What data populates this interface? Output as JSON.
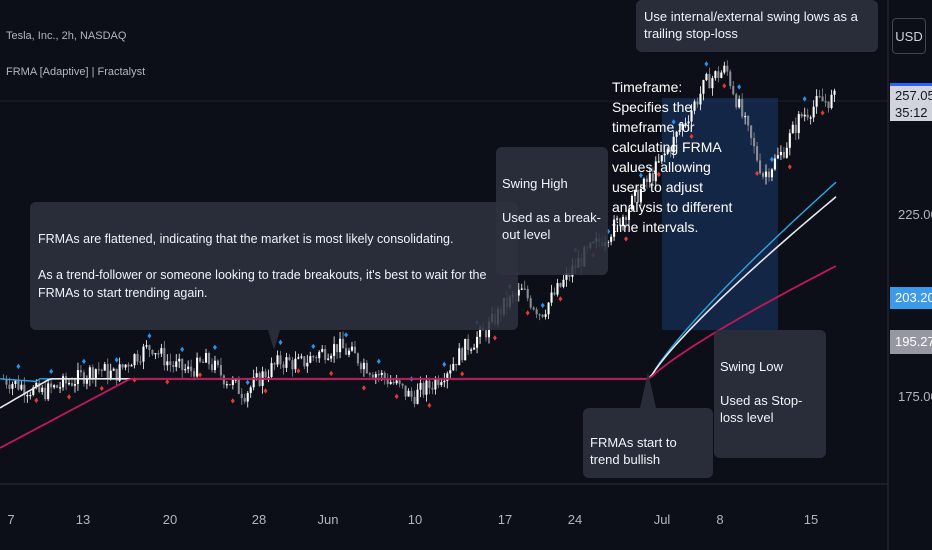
{
  "header": {
    "symbol": "Tesla, Inc., 2h, NASDAQ",
    "indicator": "FRMA [Adaptive] | Fractalyst"
  },
  "currency": "USD",
  "price_tags": {
    "last_price": "257.05",
    "countdown": "35:12",
    "blue_line": "203.20",
    "white_line": "195.27"
  },
  "annotations": {
    "consolidation": "FRMAs are flattened, indicating that the market is most likely consolidating.\n\nAs a trend-follower or someone looking to trade breakouts, it's best to wait for the FRMAs to start trending again.",
    "swing_high": "Swing High\n\nUsed as a break-out level",
    "timeframe": "Timeframe: Specifies the timeframe for calculating FRMA values, allowing users to adjust analysis to different time intervals.",
    "trailing_stop": "Use internal/external swing lows as a trailing stop-loss",
    "trend_start": "FRMAs start to trend bullish",
    "swing_low": "Swing Low\n\nUsed as Stop-loss level"
  },
  "colors": {
    "background": "#0c0f18",
    "bull_candle": "#ffffff",
    "bear_candle": "#8a8d94",
    "frma_fast": "#2aa8e8",
    "frma_mid": "#e8e8ee",
    "frma_slow": "#c2185b",
    "swing_high_marker": "#2196f3",
    "swing_low_marker": "#e53935",
    "price_tag_blue": "#2962ff",
    "price_tag_lightblue": "#3d9ae8",
    "price_tag_gray": "#9598a1"
  },
  "chart_data": {
    "type": "candlestick",
    "title": "Tesla, Inc., 2h, NASDAQ",
    "y_ticks": [
      "257.05",
      "225.00",
      "203.20",
      "195.27",
      "175.00"
    ],
    "x_ticks": [
      "7",
      "13",
      "20",
      "28",
      "Jun",
      "10",
      "17",
      "24",
      "Jul",
      "8",
      "15"
    ],
    "ylim": [
      150,
      280
    ],
    "series": [
      {
        "name": "FRMA fast",
        "shape": "flat ~180 until Jul, then rising to ~234"
      },
      {
        "name": "FRMA mid",
        "shape": "flat ~180 until Jul, then rising to ~230"
      },
      {
        "name": "FRMA slow",
        "shape": "rising from ~162 to ~180, flat, then rising to ~211"
      }
    ],
    "price_path": [
      [
        0,
        180
      ],
      [
        3,
        178
      ],
      [
        6,
        176
      ],
      [
        9,
        178
      ],
      [
        12,
        180
      ],
      [
        15,
        183
      ],
      [
        18,
        181
      ],
      [
        21,
        186
      ],
      [
        24,
        189
      ],
      [
        27,
        184
      ],
      [
        30,
        182
      ],
      [
        33,
        185
      ],
      [
        36,
        180
      ],
      [
        39,
        176
      ],
      [
        42,
        181
      ],
      [
        45,
        185
      ],
      [
        48,
        184
      ],
      [
        51,
        187
      ],
      [
        54,
        189
      ],
      [
        57,
        186
      ],
      [
        60,
        182
      ],
      [
        63,
        179
      ],
      [
        66,
        175
      ],
      [
        69,
        178
      ],
      [
        72,
        183
      ],
      [
        75,
        189
      ],
      [
        78,
        193
      ],
      [
        81,
        200
      ],
      [
        84,
        204
      ],
      [
        87,
        198
      ],
      [
        90,
        205
      ],
      [
        93,
        212
      ],
      [
        96,
        217
      ],
      [
        99,
        222
      ],
      [
        102,
        229
      ],
      [
        105,
        236
      ],
      [
        108,
        244
      ],
      [
        111,
        253
      ],
      [
        114,
        262
      ],
      [
        117,
        265
      ],
      [
        120,
        250
      ],
      [
        123,
        236
      ],
      [
        126,
        242
      ],
      [
        129,
        252
      ],
      [
        132,
        256
      ],
      [
        135,
        257
      ]
    ]
  }
}
